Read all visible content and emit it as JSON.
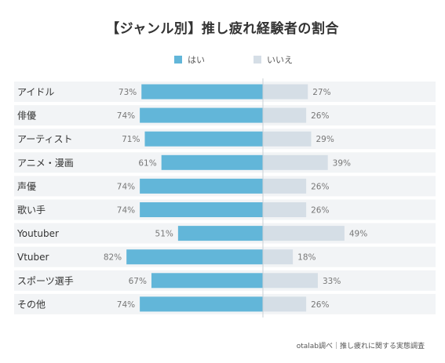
{
  "title": "【ジャンル別】推し疲れ経験者の割合",
  "source_note": "otalab調べ｜推し疲れに関する実態調査",
  "colors": {
    "yes": "#62b6d9",
    "no": "#d5dee6",
    "row_bg": "#f2f4f6",
    "label": "#333333",
    "pct": "#777777"
  },
  "chart_data": {
    "type": "bar",
    "orientation": "horizontal-diverging",
    "categories": [
      "アイドル",
      "俳優",
      "アーティスト",
      "アニメ・漫画",
      "声優",
      "歌い手",
      "Youtuber",
      "Vtuber",
      "スポーツ選手",
      "その他"
    ],
    "series": [
      {
        "name": "はい",
        "values": [
          73,
          74,
          71,
          61,
          74,
          74,
          51,
          82,
          67,
          74
        ],
        "labels": [
          "73%",
          "74%",
          "71%",
          "61%",
          "74%",
          "74%",
          "51%",
          "82%",
          "67%",
          "74%"
        ]
      },
      {
        "name": "いいえ",
        "values": [
          27,
          26,
          29,
          39,
          26,
          26,
          49,
          18,
          33,
          26
        ],
        "labels": [
          "27%",
          "26%",
          "29%",
          "39%",
          "26%",
          "26%",
          "49%",
          "18%",
          "33%",
          "26%"
        ]
      }
    ],
    "unit": "%",
    "legend_position": "top-center",
    "grid": false
  }
}
